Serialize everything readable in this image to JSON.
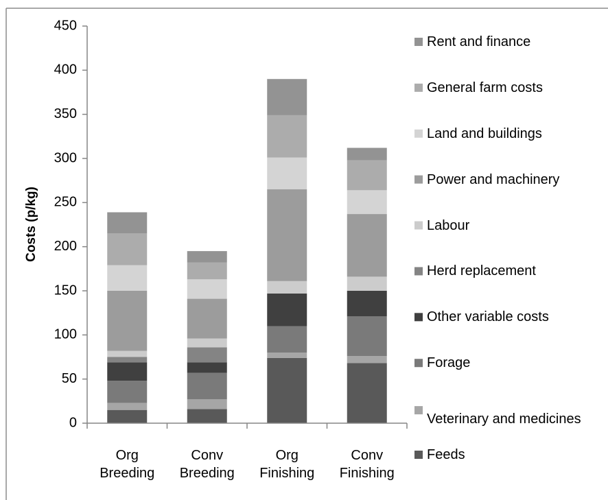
{
  "chart_data": {
    "type": "stacked_bar",
    "y_label": "Costs (p/kg)",
    "categories": [
      "Org Breeding",
      "Conv Breeding",
      "Org Finishing",
      "Conv Finishing"
    ],
    "series": [
      {
        "name": "Feeds",
        "color": "#595959",
        "values": [
          15,
          16,
          74,
          68
        ]
      },
      {
        "name": "Veterinary and medicines",
        "color": "#a6a6a6",
        "values": [
          8,
          11,
          6,
          8
        ]
      },
      {
        "name": "Forage",
        "color": "#7a7a7a",
        "values": [
          25,
          30,
          30,
          45
        ]
      },
      {
        "name": "Other variable costs",
        "color": "#404040",
        "values": [
          21,
          12,
          37,
          29
        ]
      },
      {
        "name": "Herd replacement",
        "color": "#848484",
        "values": [
          6,
          17,
          0,
          0
        ]
      },
      {
        "name": "Labour",
        "color": "#cccccc",
        "values": [
          7,
          10,
          14,
          16
        ]
      },
      {
        "name": "Power and machinery",
        "color": "#9c9c9c",
        "values": [
          68,
          45,
          104,
          71
        ]
      },
      {
        "name": "Land and buildings",
        "color": "#d4d4d4",
        "values": [
          29,
          22,
          36,
          27
        ]
      },
      {
        "name": "General farm costs",
        "color": "#acacac",
        "values": [
          36,
          19,
          48,
          34
        ]
      },
      {
        "name": "Rent and finance",
        "color": "#939393",
        "values": [
          24,
          13,
          41,
          14
        ]
      }
    ],
    "ylim": [
      0,
      450
    ],
    "yticks": [
      0,
      50,
      100,
      150,
      200,
      250,
      300,
      350,
      400,
      450
    ],
    "grid": false,
    "legend": "right"
  }
}
